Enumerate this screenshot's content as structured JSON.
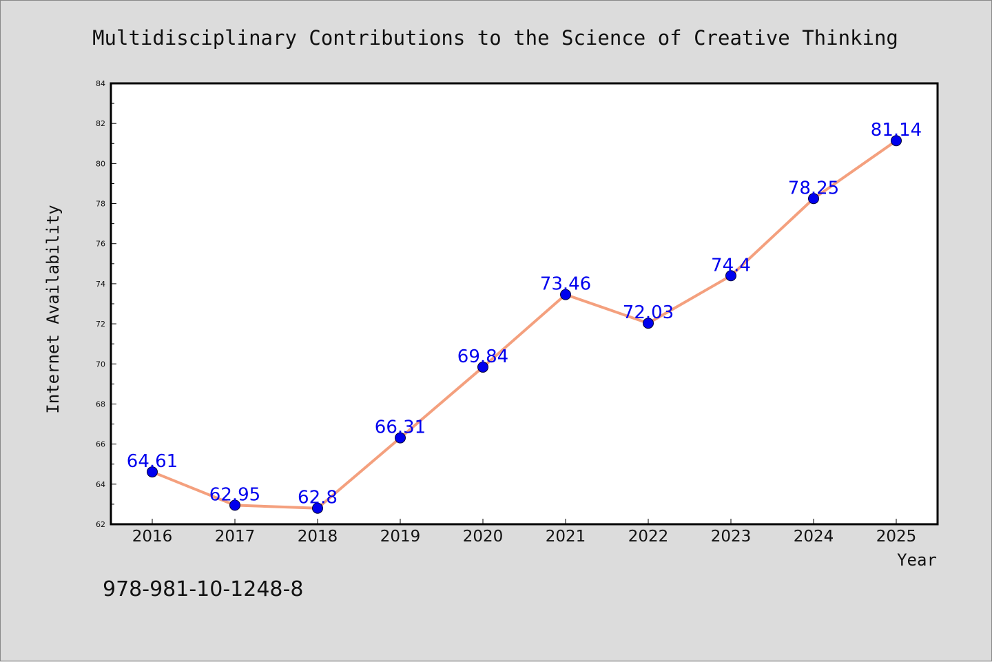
{
  "chart_data": {
    "type": "line",
    "title": "Multidisciplinary Contributions to the Science of Creative Thinking",
    "xlabel": "Year",
    "ylabel": "Internet Availability",
    "categories": [
      "2016",
      "2017",
      "2018",
      "2019",
      "2020",
      "2021",
      "2022",
      "2023",
      "2024",
      "2025"
    ],
    "series": [
      {
        "values": [
          64.61,
          62.95,
          62.8,
          66.31,
          69.84,
          73.46,
          72.03,
          74.4,
          78.25,
          81.14
        ],
        "labels": [
          "64.61",
          "62.95",
          "62.8",
          "66.31",
          "69.84",
          "73.46",
          "72.03",
          "74.4",
          "78.25",
          "81.14"
        ]
      }
    ],
    "ylim": [
      62,
      84
    ],
    "yticks": [
      "62",
      "64",
      "66",
      "68",
      "70",
      "72",
      "74",
      "76",
      "78",
      "80",
      "82",
      "84"
    ],
    "grid": false,
    "line_color": "#f4a07e",
    "marker_color": "#0000ee",
    "label_color": "#0000ee"
  },
  "footer": {
    "isbn": "978-981-10-1248-8"
  }
}
